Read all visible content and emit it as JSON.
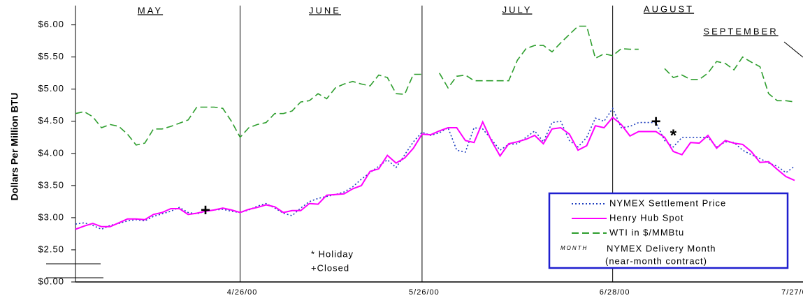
{
  "chart_data": {
    "type": "line",
    "y_label": "Dollars Per Million BTU",
    "categories": [
      null,
      null,
      null,
      null,
      null,
      null,
      null,
      null,
      null,
      null,
      null,
      null,
      null,
      null,
      null,
      null,
      null,
      null,
      null,
      "4/26/00",
      null,
      null,
      null,
      null,
      null,
      null,
      null,
      null,
      null,
      null,
      null,
      null,
      null,
      null,
      null,
      null,
      null,
      null,
      null,
      null,
      "5/26/00",
      null,
      null,
      null,
      null,
      null,
      null,
      null,
      null,
      null,
      null,
      null,
      null,
      null,
      null,
      null,
      null,
      null,
      null,
      null,
      null,
      null,
      "6/28/00",
      null,
      null,
      null,
      null,
      null,
      null,
      null,
      null,
      null,
      null,
      null,
      null,
      null,
      null,
      null,
      null,
      null,
      null,
      null,
      null,
      "7/27/00"
    ],
    "months": [
      "MAY",
      "JUNE",
      "JULY",
      "AUGUST",
      "SEPTEMBER"
    ],
    "series": [
      {
        "name": "NYMEX Settlement Price",
        "color": "#1f3fbf",
        "style": "dotted",
        "values": [
          2.9,
          2.92,
          2.88,
          2.82,
          2.88,
          2.91,
          2.95,
          2.97,
          2.95,
          3.02,
          3.06,
          3.1,
          3.16,
          3.08,
          3.06,
          3.1,
          3.12,
          3.13,
          3.1,
          3.08,
          3.12,
          3.18,
          3.22,
          3.15,
          3.07,
          3.03,
          3.15,
          3.25,
          3.3,
          3.33,
          3.36,
          3.4,
          3.48,
          3.6,
          3.7,
          3.8,
          3.9,
          3.78,
          3.98,
          4.18,
          4.33,
          4.28,
          4.32,
          4.4,
          4.05,
          4.02,
          4.4,
          4.38,
          4.22,
          4.05,
          4.14,
          4.15,
          4.25,
          4.35,
          4.18,
          4.48,
          4.5,
          4.2,
          4.1,
          4.25,
          4.55,
          4.5,
          4.7,
          4.4,
          4.42,
          4.48,
          4.48,
          4.48,
          4.2,
          4.1,
          4.25,
          4.25,
          4.25,
          4.25,
          4.1,
          4.18,
          4.17,
          4.05,
          3.98,
          3.92,
          3.85,
          3.8,
          3.7,
          3.8
        ]
      },
      {
        "name": "Henry Hub Spot",
        "color": "#ff00ff",
        "style": "solid",
        "values": [
          2.82,
          2.87,
          2.91,
          2.86,
          2.86,
          2.92,
          2.98,
          2.98,
          2.97,
          3.05,
          3.08,
          3.14,
          3.14,
          3.05,
          3.07,
          3.1,
          3.12,
          3.15,
          3.12,
          3.08,
          3.13,
          3.16,
          3.2,
          3.17,
          3.08,
          3.11,
          3.11,
          3.22,
          3.21,
          3.35,
          3.36,
          3.37,
          3.45,
          3.5,
          3.72,
          3.76,
          3.97,
          3.85,
          3.93,
          4.08,
          4.3,
          4.29,
          4.35,
          4.4,
          4.4,
          4.2,
          4.17,
          4.49,
          4.2,
          3.96,
          4.15,
          4.18,
          4.22,
          4.28,
          4.15,
          4.38,
          4.4,
          4.3,
          4.05,
          4.12,
          4.43,
          4.4,
          4.56,
          4.45,
          4.27,
          4.34,
          4.34,
          4.34,
          4.25,
          4.03,
          3.98,
          4.17,
          4.16,
          4.28,
          4.08,
          4.2,
          4.16,
          4.14,
          4.03,
          3.86,
          3.87,
          3.75,
          3.64,
          3.58
        ]
      },
      {
        "name": "WTI in $/MMBtu",
        "color": "#2e9e2e",
        "style": "dashed",
        "values": [
          4.62,
          4.65,
          4.57,
          4.4,
          4.45,
          4.42,
          4.3,
          4.13,
          4.16,
          4.38,
          4.38,
          4.42,
          4.47,
          4.52,
          4.72,
          4.72,
          4.72,
          4.7,
          4.5,
          4.25,
          4.4,
          4.45,
          4.48,
          4.62,
          4.62,
          4.66,
          4.8,
          4.82,
          4.93,
          4.85,
          5.02,
          5.08,
          5.12,
          5.08,
          5.05,
          5.22,
          5.18,
          4.93,
          4.92,
          5.23,
          5.23,
          null,
          5.25,
          5.02,
          5.2,
          5.22,
          5.13,
          5.13,
          5.13,
          5.13,
          5.13,
          5.45,
          5.63,
          5.68,
          5.68,
          5.58,
          5.72,
          5.85,
          5.98,
          5.98,
          5.48,
          5.55,
          5.52,
          5.63,
          5.62,
          5.62,
          null,
          null,
          5.32,
          5.18,
          5.22,
          5.15,
          5.15,
          5.25,
          5.43,
          5.4,
          5.3,
          5.5,
          5.42,
          5.35,
          4.93,
          4.82,
          4.82,
          4.8
        ]
      }
    ],
    "legend_extra": {
      "tag": "MONTH",
      "label": "NYMEX Delivery Month",
      "sublabel": "(near-month contract)"
    },
    "notes": [
      "* Holiday",
      "+Closed"
    ],
    "markers": [
      {
        "text": "+",
        "at": 15,
        "value": 3.1
      },
      {
        "text": "+",
        "at": 67,
        "value": 4.48
      },
      {
        "text": "*",
        "at": 69,
        "value": 4.33
      }
    ],
    "axis_break": true,
    "ylim": [
      2.0,
      6.3
    ],
    "yticks": [
      {
        "value": 0,
        "label": "$0.00"
      },
      {
        "value": 2.5,
        "label": "$2.50"
      },
      {
        "value": 3.0,
        "label": "$3.00"
      },
      {
        "value": 3.5,
        "label": "$3.50"
      },
      {
        "value": 4.0,
        "label": "$4.00"
      },
      {
        "value": 4.5,
        "label": "$4.50"
      },
      {
        "value": 5.0,
        "label": "$5.00"
      },
      {
        "value": 5.5,
        "label": "$5.50"
      },
      {
        "value": 6.0,
        "label": "$6.00"
      }
    ],
    "legend": "bottom-right"
  }
}
